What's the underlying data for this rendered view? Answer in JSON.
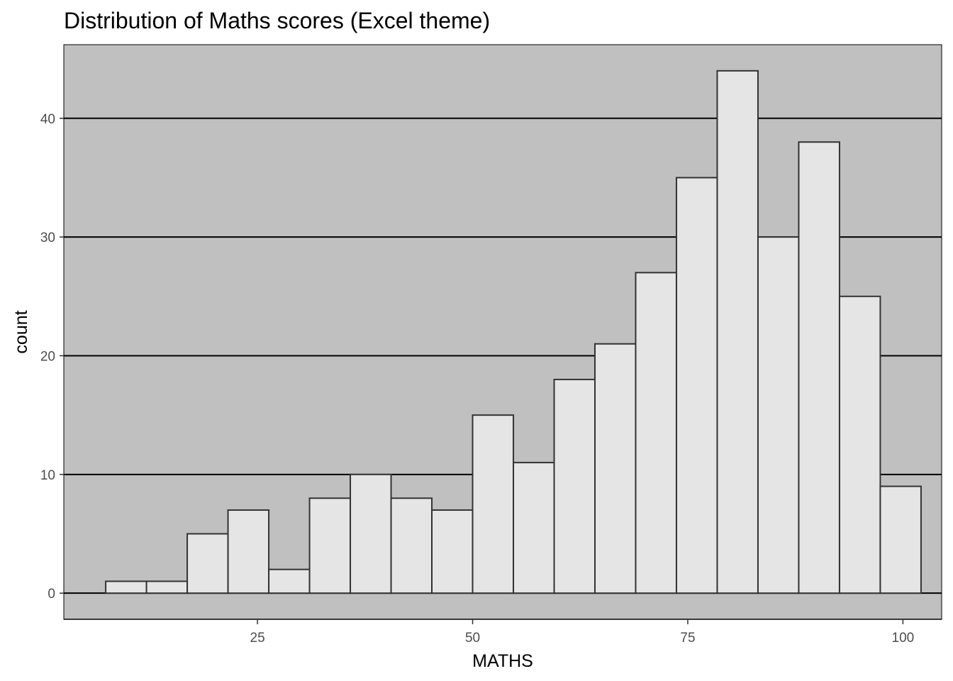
{
  "chart_data": {
    "type": "bar",
    "title": "Distribution of Maths scores (Excel theme)",
    "xlabel": "MATHS",
    "ylabel": "count",
    "xlim": [
      2.5,
      104.5
    ],
    "ylim": [
      -2.2,
      46.2
    ],
    "x_ticks": [
      25,
      50,
      75,
      100
    ],
    "y_ticks": [
      0,
      10,
      20,
      30,
      40
    ],
    "grid": "horizontal major",
    "bin_width": 4.737,
    "bins": [
      {
        "start": 7.368,
        "end": 12.105,
        "count": 1
      },
      {
        "start": 12.105,
        "end": 16.842,
        "count": 1
      },
      {
        "start": 16.842,
        "end": 21.579,
        "count": 5
      },
      {
        "start": 21.579,
        "end": 26.316,
        "count": 7
      },
      {
        "start": 26.316,
        "end": 31.053,
        "count": 2
      },
      {
        "start": 31.053,
        "end": 35.789,
        "count": 8
      },
      {
        "start": 35.789,
        "end": 40.526,
        "count": 10
      },
      {
        "start": 40.526,
        "end": 45.263,
        "count": 8
      },
      {
        "start": 45.263,
        "end": 50.0,
        "count": 7
      },
      {
        "start": 50.0,
        "end": 54.737,
        "count": 15
      },
      {
        "start": 54.737,
        "end": 59.474,
        "count": 11
      },
      {
        "start": 59.474,
        "end": 64.211,
        "count": 18
      },
      {
        "start": 64.211,
        "end": 68.947,
        "count": 21
      },
      {
        "start": 68.947,
        "end": 73.684,
        "count": 27
      },
      {
        "start": 73.684,
        "end": 78.421,
        "count": 35
      },
      {
        "start": 78.421,
        "end": 83.158,
        "count": 44
      },
      {
        "start": 83.158,
        "end": 87.895,
        "count": 30
      },
      {
        "start": 87.895,
        "end": 92.632,
        "count": 38
      },
      {
        "start": 92.632,
        "end": 97.368,
        "count": 25
      },
      {
        "start": 97.368,
        "end": 102.105,
        "count": 9
      }
    ],
    "colors": {
      "panel_background": "#c0c0c0",
      "bar_fill": "#e5e5e5",
      "bar_outline": "#333333",
      "gridline": "#000000"
    }
  }
}
